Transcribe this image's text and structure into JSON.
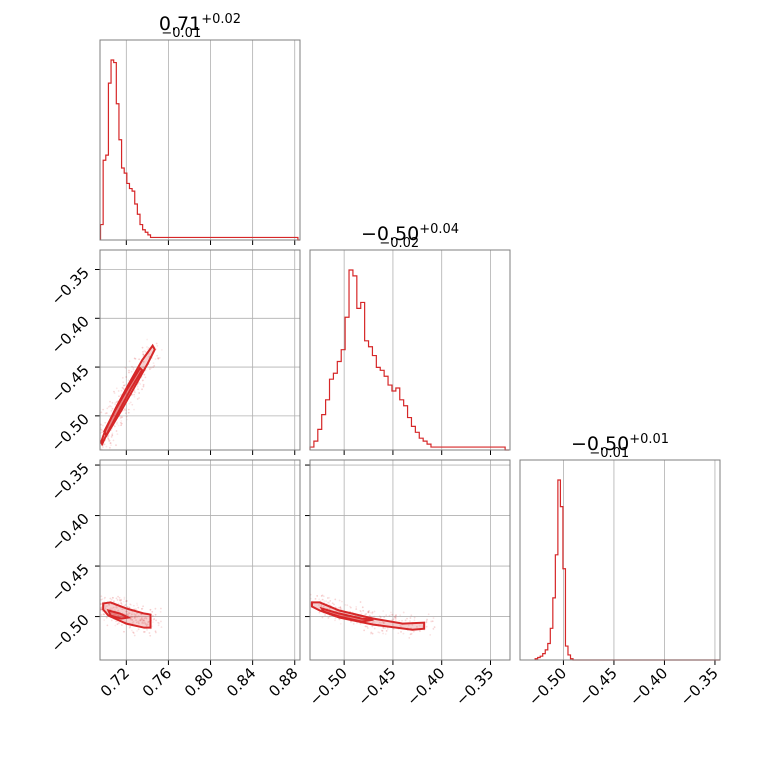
{
  "chart_data": {
    "type": "corner",
    "colors": {
      "series": "#d62728",
      "grid": "#b0b0b0",
      "frame": "#7f7f7f"
    },
    "parameters": [
      {
        "title_value": "0.71",
        "title_plus": "+0.02",
        "title_minus": "−0.01",
        "axis_range": [
          0.695,
          0.885
        ],
        "ticks": [
          0.72,
          0.76,
          0.8,
          0.84,
          0.88
        ],
        "tick_labels": [
          "0.72",
          "0.76",
          "0.80",
          "0.84",
          "0.88"
        ]
      },
      {
        "title_value": "−0.50",
        "title_plus": "+0.04",
        "title_minus": "−0.02",
        "axis_range": [
          -0.535,
          -0.33
        ],
        "ticks": [
          -0.5,
          -0.45,
          -0.4,
          -0.35
        ],
        "tick_labels": [
          "−0.50",
          "−0.45",
          "−0.40",
          "−0.35"
        ]
      },
      {
        "title_value": "−0.50",
        "title_plus": "+0.01",
        "title_minus": "−0.01",
        "axis_range": [
          -0.543,
          -0.345
        ],
        "ticks": [
          -0.5,
          -0.45,
          -0.4,
          -0.35
        ],
        "tick_labels": [
          "−0.50",
          "−0.45",
          "−0.40",
          "−0.35"
        ]
      }
    ],
    "row_axes": [
      {
        "axis_range": [
          -0.535,
          -0.33
        ],
        "ticks": [
          -0.5,
          -0.45,
          -0.4,
          -0.35
        ],
        "tick_labels": [
          "−0.50",
          "−0.45",
          "−0.40",
          "−0.35"
        ]
      },
      {
        "axis_range": [
          -0.543,
          -0.345
        ],
        "ticks": [
          -0.5,
          -0.45,
          -0.4,
          -0.35
        ],
        "tick_labels": [
          "−0.50",
          "−0.45",
          "−0.40",
          "−0.35"
        ]
      }
    ],
    "histograms": [
      {
        "param": 0,
        "bin_start": 0.6955,
        "bin_width": 0.0025,
        "counts": [
          6,
          31,
          33,
          61,
          70,
          69,
          53,
          39,
          28,
          26,
          22,
          20,
          19,
          14,
          10,
          6,
          4,
          3,
          2,
          1,
          1,
          1,
          1,
          1,
          1,
          1,
          1,
          1,
          1,
          1,
          1,
          1,
          1,
          1,
          1,
          1,
          1,
          1,
          1,
          1,
          1,
          1,
          1,
          1,
          1,
          1,
          1,
          1,
          1,
          1,
          1,
          1,
          1,
          1,
          1,
          1,
          1,
          1,
          1,
          1,
          1,
          1,
          1,
          1,
          1,
          1,
          1,
          1,
          1,
          1,
          1,
          1,
          1,
          1,
          1,
          0
        ]
      },
      {
        "param": 1,
        "bin_start": -0.535,
        "bin_width": 0.004,
        "counts": [
          1,
          3,
          7,
          12,
          17,
          24,
          26,
          30,
          34,
          45,
          61,
          59,
          48,
          50,
          37,
          35,
          32,
          28,
          27,
          25,
          22,
          20,
          21,
          17,
          15,
          11,
          8,
          6,
          4,
          3,
          2,
          1,
          1,
          1,
          1,
          1,
          1,
          1,
          1,
          1,
          1,
          1,
          1,
          1,
          1,
          1,
          1,
          1,
          1,
          1,
          0
        ]
      },
      {
        "param": 2,
        "bin_start": -0.528,
        "bin_width": 0.0025,
        "counts": [
          1,
          2,
          3,
          5,
          8,
          13,
          25,
          49,
          83,
          142,
          121,
          72,
          11,
          4,
          1,
          0,
          0,
          0,
          0,
          0,
          0,
          0,
          0,
          0,
          0,
          0,
          0,
          0,
          0,
          0,
          0,
          0,
          0,
          0,
          0,
          0,
          0,
          0,
          0,
          0,
          0,
          0,
          0,
          0,
          0,
          0,
          0,
          0,
          0,
          0,
          0,
          0,
          0,
          0,
          0,
          0,
          0,
          0,
          0,
          0,
          0,
          0,
          0,
          0,
          0,
          0,
          0,
          0,
          0,
          0,
          0,
          0,
          0,
          0,
          0,
          0,
          0,
          0,
          0,
          0
        ]
      }
    ],
    "scatter_panels": [
      {
        "x_param": 0,
        "y_axis": 0,
        "contour_outer": [
          [
            0.697,
            -0.529
          ],
          [
            0.7,
            -0.522
          ],
          [
            0.715,
            -0.495
          ],
          [
            0.728,
            -0.47
          ],
          [
            0.74,
            -0.447
          ],
          [
            0.747,
            -0.432
          ],
          [
            0.745,
            -0.428
          ],
          [
            0.735,
            -0.443
          ],
          [
            0.722,
            -0.468
          ],
          [
            0.71,
            -0.492
          ],
          [
            0.7,
            -0.515
          ],
          [
            0.696,
            -0.527
          ]
        ],
        "contour_inner": [
          [
            0.701,
            -0.52
          ],
          [
            0.712,
            -0.497
          ],
          [
            0.724,
            -0.473
          ],
          [
            0.735,
            -0.453
          ],
          [
            0.733,
            -0.451
          ],
          [
            0.72,
            -0.474
          ],
          [
            0.708,
            -0.497
          ],
          [
            0.699,
            -0.516
          ]
        ]
      },
      {
        "x_param": 0,
        "y_axis": 1,
        "contour_outer": [
          [
            0.698,
            -0.487
          ],
          [
            0.705,
            -0.486
          ],
          [
            0.72,
            -0.492
          ],
          [
            0.737,
            -0.497
          ],
          [
            0.743,
            -0.498
          ],
          [
            0.743,
            -0.511
          ],
          [
            0.737,
            -0.511
          ],
          [
            0.72,
            -0.507
          ],
          [
            0.703,
            -0.499
          ],
          [
            0.698,
            -0.493
          ]
        ],
        "contour_inner": [
          [
            0.703,
            -0.494
          ],
          [
            0.714,
            -0.497
          ],
          [
            0.722,
            -0.501
          ],
          [
            0.715,
            -0.502
          ],
          [
            0.705,
            -0.499
          ]
        ]
      },
      {
        "x_param": 1,
        "y_axis": 1,
        "contour_outer": [
          [
            -0.533,
            -0.486
          ],
          [
            -0.525,
            -0.486
          ],
          [
            -0.505,
            -0.494
          ],
          [
            -0.47,
            -0.502
          ],
          [
            -0.44,
            -0.507
          ],
          [
            -0.418,
            -0.506
          ],
          [
            -0.418,
            -0.512
          ],
          [
            -0.43,
            -0.513
          ],
          [
            -0.47,
            -0.508
          ],
          [
            -0.505,
            -0.501
          ],
          [
            -0.525,
            -0.494
          ],
          [
            -0.533,
            -0.49
          ]
        ],
        "contour_inner": [
          [
            -0.523,
            -0.492
          ],
          [
            -0.505,
            -0.497
          ],
          [
            -0.482,
            -0.502
          ],
          [
            -0.47,
            -0.503
          ],
          [
            -0.482,
            -0.505
          ],
          [
            -0.505,
            -0.5
          ],
          [
            -0.521,
            -0.495
          ]
        ]
      }
    ]
  }
}
